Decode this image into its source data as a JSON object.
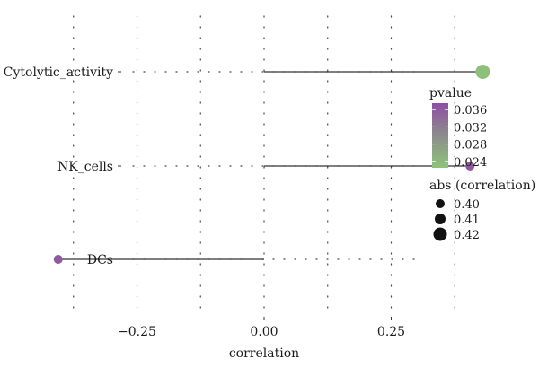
{
  "chart_data": {
    "type": "scatter",
    "subtype": "lollipop",
    "title": "",
    "xlabel": "correlation",
    "ylabel": "",
    "xlim": [
      -0.42,
      0.47
    ],
    "x_ticks": [
      -0.25,
      0,
      0.25
    ],
    "x_tick_labels": [
      "−0.25",
      "0.00",
      "0.25"
    ],
    "grid": "dotted",
    "categories": [
      "Cytolytic_activity",
      "NK_cells",
      "DCs"
    ],
    "points": [
      {
        "category": "Cytolytic_activity",
        "correlation": 0.43,
        "pvalue": 0.023,
        "abs_correlation": 0.43
      },
      {
        "category": "NK_cells",
        "correlation": 0.405,
        "pvalue": 0.036,
        "abs_correlation": 0.405
      },
      {
        "category": "DCs",
        "correlation": -0.405,
        "pvalue": 0.036,
        "abs_correlation": 0.405
      }
    ],
    "legend": {
      "placement": "right",
      "color": {
        "title": "pvalue",
        "ticks": [
          0.036,
          0.032,
          0.028,
          0.024
        ],
        "tick_labels": [
          "0.036",
          "0.032",
          "0.028",
          "0.024"
        ],
        "range": [
          0.0225,
          0.0375
        ],
        "low_color": "#8fc47a",
        "high_color": "#8e4fa3"
      },
      "size": {
        "title": "abs (correlation)",
        "values": [
          0.4,
          0.41,
          0.42
        ],
        "labels": [
          "0.40",
          "0.41",
          "0.42"
        ]
      }
    }
  }
}
